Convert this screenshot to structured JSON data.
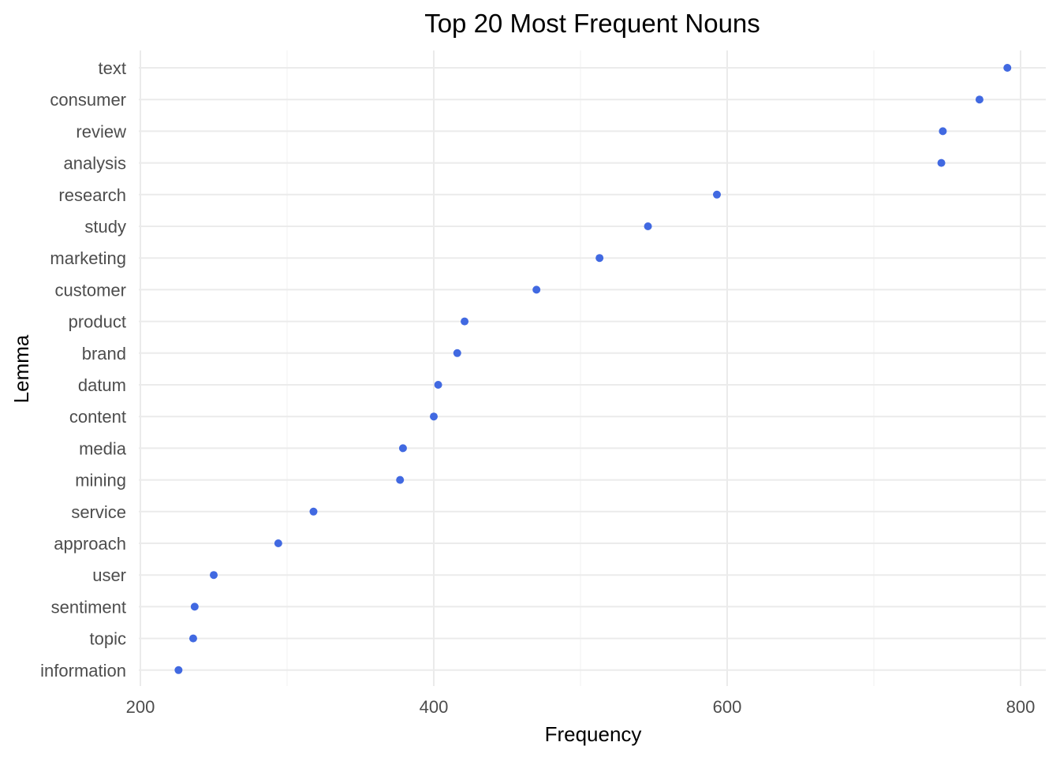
{
  "chart_data": {
    "type": "scatter",
    "title": "Top 20 Most Frequent Nouns",
    "xlabel": "Frequency",
    "ylabel": "Lemma",
    "xlim": [
      200,
      820
    ],
    "xticks": [
      200,
      400,
      600,
      800
    ],
    "grid": true,
    "legend": "none",
    "point_color": "#4169E1",
    "points": [
      {
        "label": "text",
        "value": 791
      },
      {
        "label": "consumer",
        "value": 772
      },
      {
        "label": "review",
        "value": 747
      },
      {
        "label": "analysis",
        "value": 746
      },
      {
        "label": "research",
        "value": 593
      },
      {
        "label": "study",
        "value": 546
      },
      {
        "label": "marketing",
        "value": 513
      },
      {
        "label": "customer",
        "value": 470
      },
      {
        "label": "product",
        "value": 421
      },
      {
        "label": "brand",
        "value": 416
      },
      {
        "label": "datum",
        "value": 403
      },
      {
        "label": "content",
        "value": 400
      },
      {
        "label": "media",
        "value": 379
      },
      {
        "label": "mining",
        "value": 377
      },
      {
        "label": "service",
        "value": 318
      },
      {
        "label": "approach",
        "value": 294
      },
      {
        "label": "user",
        "value": 250
      },
      {
        "label": "sentiment",
        "value": 237
      },
      {
        "label": "topic",
        "value": 236
      },
      {
        "label": "information",
        "value": 226
      }
    ]
  }
}
